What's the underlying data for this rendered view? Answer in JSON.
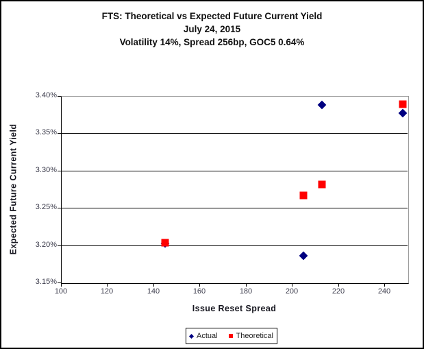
{
  "chart_data": {
    "type": "scatter",
    "title": "FTS: Theoretical vs Expected Future Current Yield",
    "subtitle_date": "July 24, 2015",
    "subtitle_params": "Volatility 14%, Spread 256bp, GOC5 0.64%",
    "xlabel": "Issue Reset Spread",
    "ylabel": "Expected Future Current Yield",
    "xlim": [
      100,
      250
    ],
    "ylim": [
      3.15,
      3.4
    ],
    "xticks": [
      100,
      120,
      140,
      160,
      180,
      200,
      220,
      240
    ],
    "yticks": [
      3.15,
      3.2,
      3.25,
      3.3,
      3.35,
      3.4
    ],
    "ytick_suffix": "%",
    "ytick_decimals": 2,
    "grid": "horizontal",
    "legend_position": "bottom-center",
    "series": [
      {
        "name": "Actual",
        "marker": "diamond",
        "color": "#000080",
        "points": [
          [
            145,
            3.202
          ],
          [
            205,
            3.186
          ],
          [
            213,
            3.388
          ],
          [
            248,
            3.377
          ]
        ]
      },
      {
        "name": "Theoretical",
        "marker": "square",
        "color": "#ff0000",
        "points": [
          [
            145,
            3.203
          ],
          [
            205,
            3.267
          ],
          [
            213,
            3.281
          ],
          [
            248,
            3.389
          ]
        ]
      }
    ],
    "colors": {
      "gridline": "#000000",
      "plot_border_top_right": "#9a9a9a",
      "axis": "#000000",
      "tick_text": "#3c3c4c",
      "title_text": "#111111"
    }
  }
}
